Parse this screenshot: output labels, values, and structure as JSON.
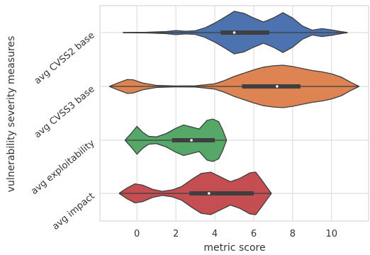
{
  "chart_data": {
    "type": "violin",
    "orientation": "horizontal",
    "title": "",
    "xlabel": "metric score",
    "ylabel": "vulnerability severity measures",
    "xlim": [
      -1.9,
      11.9
    ],
    "xticks": [
      0,
      2,
      4,
      6,
      8,
      10
    ],
    "grid": true,
    "legend": "none",
    "categories": [
      "avg CVSS2 base",
      "avg CVSS3 base",
      "avg exploitability",
      "avg impact"
    ],
    "series": [
      {
        "category": "avg CVSS2 base",
        "color": "#4c72b0",
        "range": [
          -0.7,
          10.8
        ],
        "iqr": [
          4.3,
          6.8
        ],
        "median": 5.0,
        "density": [
          [
            -0.7,
            0.1
          ],
          [
            0.5,
            0.25
          ],
          [
            1.5,
            0.8
          ],
          [
            2.0,
            1.5
          ],
          [
            2.5,
            1.0
          ],
          [
            3.0,
            1.4
          ],
          [
            3.5,
            3.6
          ],
          [
            4.0,
            7.2
          ],
          [
            4.5,
            11.5
          ],
          [
            5.0,
            16.0
          ],
          [
            5.5,
            14.5
          ],
          [
            6.0,
            11.0
          ],
          [
            6.5,
            8.0
          ],
          [
            7.0,
            11.0
          ],
          [
            7.5,
            15.0
          ],
          [
            8.0,
            11.0
          ],
          [
            8.5,
            5.0
          ],
          [
            9.0,
            1.8
          ],
          [
            9.5,
            3.0
          ],
          [
            10.0,
            2.0
          ],
          [
            10.5,
            0.7
          ],
          [
            10.8,
            0.1
          ]
        ]
      },
      {
        "category": "avg CVSS3 base",
        "color": "#dd8452",
        "range": [
          -1.4,
          11.4
        ],
        "iqr": [
          5.4,
          8.4
        ],
        "median": 7.2,
        "density": [
          [
            -1.4,
            0.1
          ],
          [
            -1.0,
            2.5
          ],
          [
            -0.5,
            5.2
          ],
          [
            -0.2,
            5.0
          ],
          [
            0.3,
            2.5
          ],
          [
            1.0,
            0.8
          ],
          [
            2.0,
            0.3
          ],
          [
            3.0,
            0.5
          ],
          [
            4.0,
            2.0
          ],
          [
            4.5,
            4.5
          ],
          [
            5.0,
            7.5
          ],
          [
            5.5,
            10.0
          ],
          [
            6.0,
            12.5
          ],
          [
            6.5,
            14.5
          ],
          [
            7.0,
            15.5
          ],
          [
            7.5,
            16.0
          ],
          [
            8.0,
            15.0
          ],
          [
            8.5,
            13.5
          ],
          [
            9.0,
            12.0
          ],
          [
            9.5,
            11.0
          ],
          [
            10.0,
            9.5
          ],
          [
            10.5,
            7.0
          ],
          [
            11.0,
            3.0
          ],
          [
            11.4,
            0.1
          ]
        ]
      },
      {
        "category": "avg exploitability",
        "color": "#55a868",
        "range": [
          -0.6,
          4.6
        ],
        "iqr": [
          1.8,
          4.0
        ],
        "median": 2.8,
        "density": [
          [
            -0.6,
            0.2
          ],
          [
            -0.3,
            5.0
          ],
          [
            0.0,
            10.5
          ],
          [
            0.3,
            6.0
          ],
          [
            0.6,
            3.0
          ],
          [
            1.0,
            2.5
          ],
          [
            1.5,
            5.0
          ],
          [
            2.0,
            9.0
          ],
          [
            2.4,
            11.5
          ],
          [
            2.8,
            10.0
          ],
          [
            3.2,
            8.5
          ],
          [
            3.6,
            15.0
          ],
          [
            3.9,
            16.0
          ],
          [
            4.2,
            14.0
          ],
          [
            4.4,
            8.0
          ],
          [
            4.6,
            0.2
          ]
        ]
      },
      {
        "category": "avg impact",
        "color": "#c44e52",
        "range": [
          -0.9,
          6.9
        ],
        "iqr": [
          2.7,
          6.0
        ],
        "median": 3.7,
        "density": [
          [
            -0.9,
            0.2
          ],
          [
            -0.5,
            4.0
          ],
          [
            -0.1,
            7.0
          ],
          [
            0.3,
            6.0
          ],
          [
            0.8,
            3.0
          ],
          [
            1.3,
            1.5
          ],
          [
            1.8,
            2.5
          ],
          [
            2.3,
            5.0
          ],
          [
            2.8,
            10.0
          ],
          [
            3.3,
            14.5
          ],
          [
            3.8,
            15.5
          ],
          [
            4.3,
            12.0
          ],
          [
            4.8,
            8.5
          ],
          [
            5.3,
            11.0
          ],
          [
            5.8,
            15.0
          ],
          [
            6.1,
            15.5
          ],
          [
            6.4,
            10.0
          ],
          [
            6.7,
            4.0
          ],
          [
            6.9,
            0.2
          ]
        ]
      }
    ]
  }
}
